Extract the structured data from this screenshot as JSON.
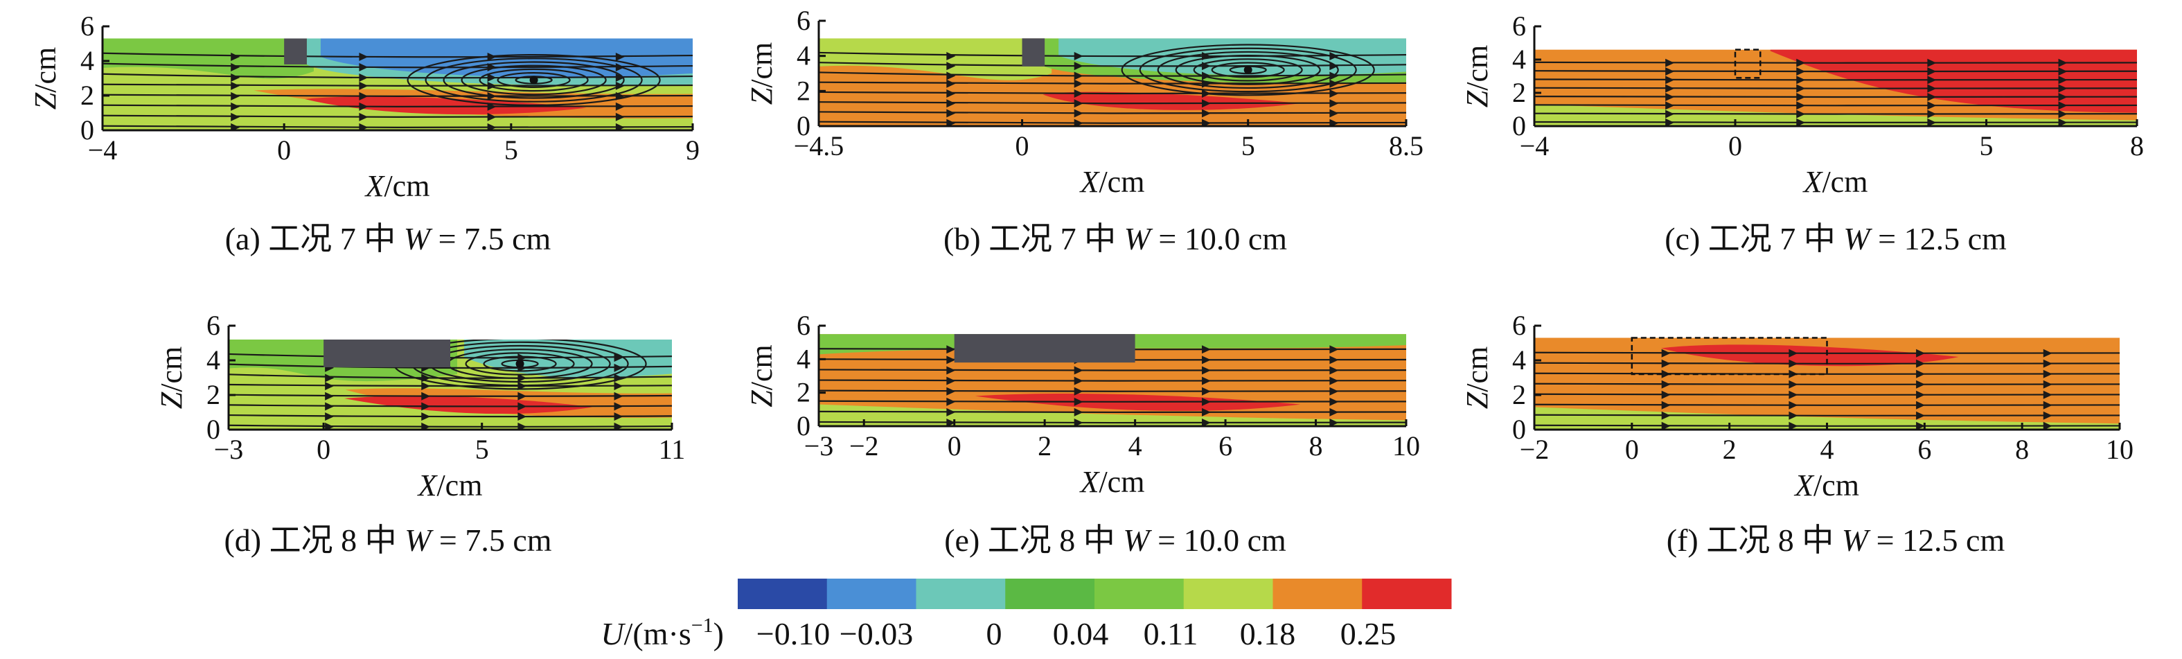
{
  "colors": {
    "c_neg010": "#2a4aa6",
    "c_neg003": "#4a8fd6",
    "c_0": "#6cc8b8",
    "c_004": "#5bb944",
    "c_011": "#7bc843",
    "c_018": "#b6d94a",
    "c_025": "#e98a2a",
    "c_max": "#e12b2b",
    "block": "#4d4d55"
  },
  "legend": {
    "label_var": "U",
    "label_unit": "/(m·s",
    "label_exp": "−1",
    "label_close": ")",
    "ticks": [
      "−0.10",
      "−0.03",
      "0",
      "0.04",
      "0.11",
      "0.18",
      "0.25"
    ]
  },
  "chart_data": [
    {
      "type": "heatmap",
      "caption_pre": "(a) 工况 7 中 ",
      "caption_var": "W",
      "caption_post": " = 7.5 cm",
      "xlabel_var": "X",
      "xlabel_unit": "/cm",
      "ylabel_var": "Z",
      "ylabel_unit": "/cm",
      "xlim": [
        -4,
        9
      ],
      "ylim": [
        0,
        6
      ],
      "xticks": [
        "−4",
        "0",
        "5",
        "9"
      ],
      "xtick_values": [
        -4,
        0,
        5,
        9
      ],
      "yticks": [
        "0",
        "2",
        "4",
        "6"
      ],
      "water_surface": 5.3,
      "block": {
        "x": [
          0,
          0.5
        ],
        "z": [
          3.8,
          5.3
        ],
        "style": "solid"
      },
      "vortex": {
        "x": 5.5,
        "z": 2.9
      },
      "velocity_zones": [
        {
          "level": "c_018",
          "region": "background"
        },
        {
          "level": "c_011",
          "region": "upstream-top"
        },
        {
          "level": "c_0",
          "region": "wake-top"
        },
        {
          "level": "c_neg003",
          "region": "recirculation"
        },
        {
          "level": "c_025",
          "region": "jet-lower"
        },
        {
          "level": "c_max",
          "region": "jet-core"
        }
      ]
    },
    {
      "type": "heatmap",
      "caption_pre": "(b) 工况 7 中 ",
      "caption_var": "W",
      "caption_post": " = 10.0 cm",
      "xlabel_var": "X",
      "xlabel_unit": "/cm",
      "ylabel_var": "Z",
      "ylabel_unit": "/cm",
      "xlim": [
        -4.5,
        8.5
      ],
      "ylim": [
        0,
        6
      ],
      "xticks": [
        "−4.5",
        "0",
        "5",
        "8.5"
      ],
      "xtick_values": [
        -4.5,
        0,
        5,
        8.5
      ],
      "yticks": [
        "0",
        "2",
        "4",
        "6"
      ],
      "water_surface": 5.0,
      "block": {
        "x": [
          0,
          0.5
        ],
        "z": [
          3.4,
          5.0
        ],
        "style": "solid"
      },
      "vortex": {
        "x": 5.0,
        "z": 3.2
      },
      "velocity_zones": [
        {
          "level": "c_025",
          "region": "background"
        },
        {
          "level": "c_018",
          "region": "upstream-top"
        },
        {
          "level": "c_011",
          "region": "wake-top"
        },
        {
          "level": "c_0",
          "region": "recirculation"
        },
        {
          "level": "c_max",
          "region": "jet-core"
        }
      ]
    },
    {
      "type": "heatmap",
      "caption_pre": "(c) 工况 7 中 ",
      "caption_var": "W",
      "caption_post": " = 12.5 cm",
      "xlabel_var": "X",
      "xlabel_unit": "/cm",
      "ylabel_var": "Z",
      "ylabel_unit": "/cm",
      "xlim": [
        -4,
        8
      ],
      "ylim": [
        0,
        6
      ],
      "xticks": [
        "−4",
        "0",
        "5",
        "8"
      ],
      "xtick_values": [
        -4,
        0,
        5,
        8
      ],
      "yticks": [
        "0",
        "2",
        "4",
        "6"
      ],
      "water_surface": 4.6,
      "block": {
        "x": [
          0,
          0.5
        ],
        "z": [
          2.9,
          4.6
        ],
        "style": "dashed"
      },
      "vortex": null,
      "velocity_zones": [
        {
          "level": "c_025",
          "region": "background"
        },
        {
          "level": "c_018",
          "region": "bottom"
        },
        {
          "level": "c_max",
          "region": "downstream-top"
        }
      ]
    },
    {
      "type": "heatmap",
      "caption_pre": "(d) 工况 8 中 ",
      "caption_var": "W",
      "caption_post": " = 7.5 cm",
      "xlabel_var": "X",
      "xlabel_unit": "/cm",
      "ylabel_var": "Z",
      "ylabel_unit": "/cm",
      "xlim": [
        -3,
        11
      ],
      "ylim": [
        0,
        6
      ],
      "xticks": [
        "−3",
        "0",
        "5",
        "11"
      ],
      "xtick_values": [
        -3,
        0,
        5,
        11
      ],
      "yticks": [
        "0",
        "2",
        "4",
        "6"
      ],
      "water_surface": 5.2,
      "block": {
        "x": [
          0,
          4
        ],
        "z": [
          3.6,
          5.2
        ],
        "style": "solid"
      },
      "vortex": {
        "x": 6.2,
        "z": 3.8
      },
      "velocity_zones": [
        {
          "level": "c_018",
          "region": "background"
        },
        {
          "level": "c_011",
          "region": "upstream-top"
        },
        {
          "level": "c_0",
          "region": "recirculation"
        },
        {
          "level": "c_025",
          "region": "jet-lower"
        },
        {
          "level": "c_max",
          "region": "jet-core"
        }
      ]
    },
    {
      "type": "heatmap",
      "caption_pre": "(e) 工况 8 中 ",
      "caption_var": "W",
      "caption_post": " = 10.0 cm",
      "xlabel_var": "X",
      "xlabel_unit": "/cm",
      "ylabel_var": "Z",
      "ylabel_unit": "/cm",
      "xlim": [
        -3,
        10
      ],
      "ylim": [
        0,
        6
      ],
      "xticks": [
        "−3",
        "−2",
        "0",
        "2",
        "4",
        "6",
        "8",
        "10"
      ],
      "xtick_values": [
        -3,
        -2,
        0,
        2,
        4,
        6,
        8,
        10
      ],
      "yticks": [
        "0",
        "2",
        "4",
        "6"
      ],
      "water_surface": 5.5,
      "block": {
        "x": [
          0,
          4
        ],
        "z": [
          3.8,
          5.5
        ],
        "style": "solid"
      },
      "vortex": null,
      "velocity_zones": [
        {
          "level": "c_025",
          "region": "background"
        },
        {
          "level": "c_011",
          "region": "top"
        },
        {
          "level": "c_018",
          "region": "bottom"
        },
        {
          "level": "c_max",
          "region": "jet-core"
        }
      ]
    },
    {
      "type": "heatmap",
      "caption_pre": "(f) 工况 8 中 ",
      "caption_var": "W",
      "caption_post": " = 12.5 cm",
      "xlabel_var": "X",
      "xlabel_unit": "/cm",
      "ylabel_var": "Z",
      "ylabel_unit": "/cm",
      "xlim": [
        -2,
        10
      ],
      "ylim": [
        0,
        6
      ],
      "xticks": [
        "−2",
        "0",
        "2",
        "4",
        "6",
        "8",
        "10"
      ],
      "xtick_values": [
        -2,
        0,
        2,
        4,
        6,
        8,
        10
      ],
      "yticks": [
        "0",
        "2",
        "4",
        "6"
      ],
      "water_surface": 5.3,
      "block": {
        "x": [
          0,
          4
        ],
        "z": [
          3.2,
          5.3
        ],
        "style": "dashed"
      },
      "vortex": null,
      "velocity_zones": [
        {
          "level": "c_025",
          "region": "background"
        },
        {
          "level": "c_018",
          "region": "bottom"
        },
        {
          "level": "c_max",
          "region": "top-middle"
        }
      ]
    }
  ]
}
